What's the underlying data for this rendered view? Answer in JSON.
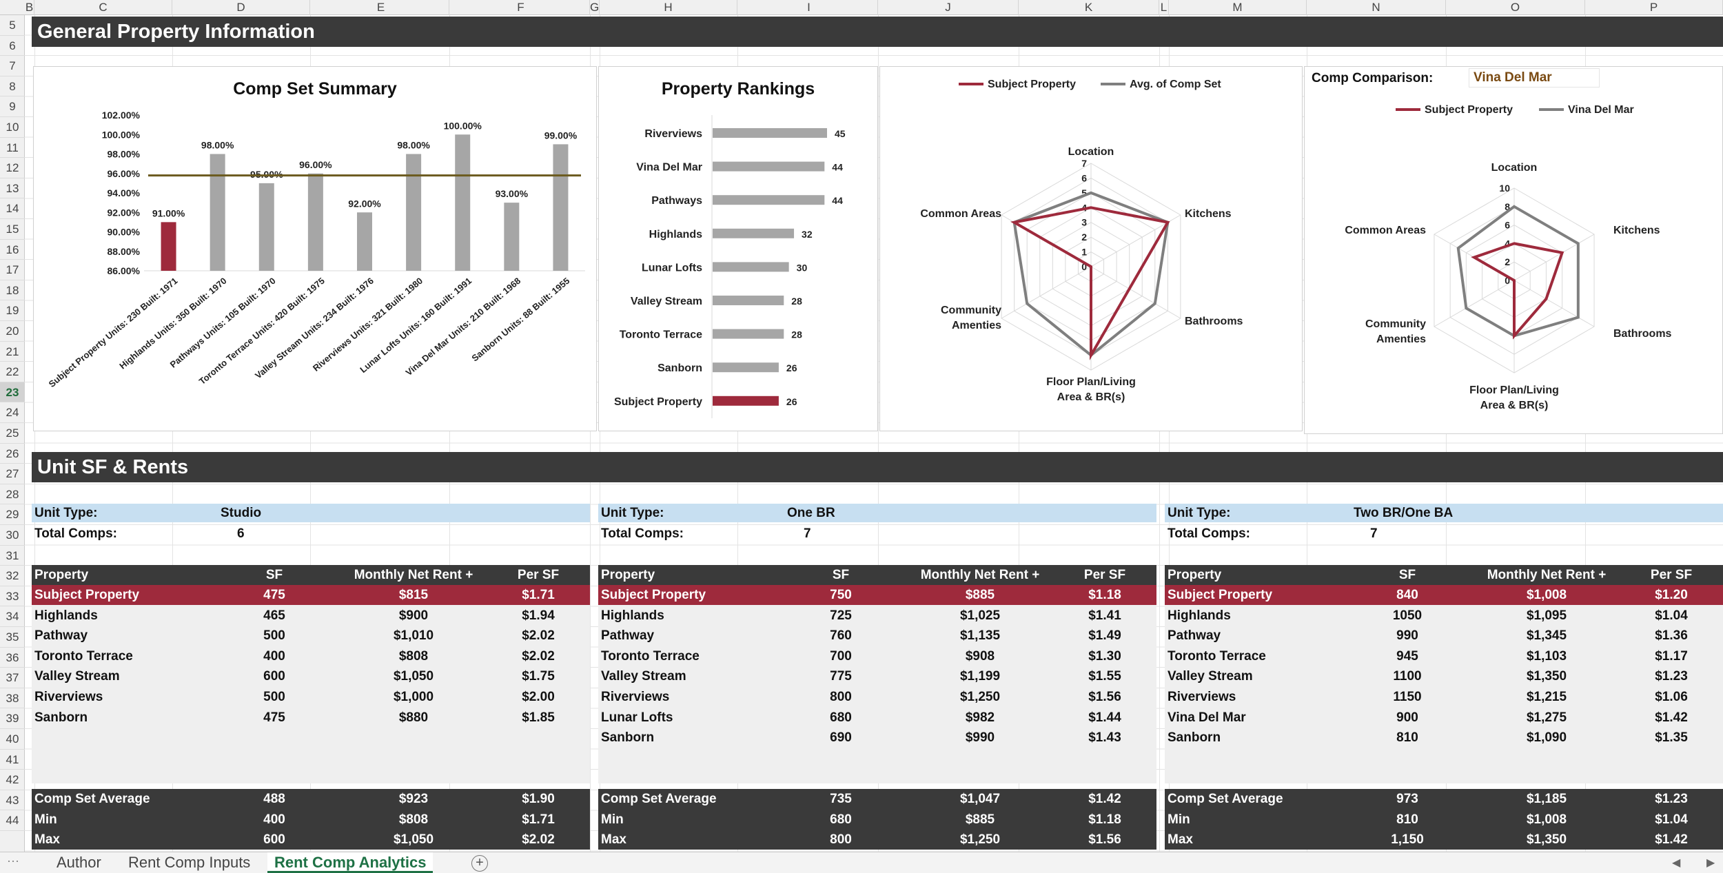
{
  "columns": [
    "B",
    "C",
    "D",
    "E",
    "F",
    "G",
    "H",
    "I",
    "J",
    "K",
    "L",
    "M",
    "N",
    "O",
    "P"
  ],
  "rows": [
    "5",
    "6",
    "7",
    "8",
    "9",
    "10",
    "11",
    "12",
    "13",
    "14",
    "15",
    "16",
    "17",
    "18",
    "19",
    "20",
    "21",
    "22",
    "23",
    "24",
    "25",
    "26",
    "27",
    "28",
    "29",
    "30",
    "31",
    "32",
    "33",
    "34",
    "35",
    "36",
    "37",
    "38",
    "39",
    "40",
    "41",
    "42",
    "43",
    "44"
  ],
  "selected_row": "23",
  "sections": {
    "general": "General Property Information",
    "unit": "Unit SF & Rents"
  },
  "comp_summary": {
    "title": "Comp Set Summary",
    "chart_data": {
      "type": "bar",
      "categories": [
        "Subject Property Units: 230 Built: 1971",
        "Highlands Units: 350 Built: 1970",
        "Pathways Units: 105 Built: 1970",
        "Toronto Terrace Units: 420 Built: 1975",
        "Valley Stream Units: 234 Built: 1976",
        "Riverviews Units: 321 Built: 1980",
        "Lunar Lofts Units: 160 Built: 1991",
        "Vina Del Mar Units: 210 Built: 1968",
        "Sanborn Units: 88 Built: 1955"
      ],
      "values": [
        91,
        98,
        95,
        96,
        92,
        98,
        100,
        93,
        99
      ],
      "data_labels": [
        "91.00%",
        "98.00%",
        "95.00%",
        "96.00%",
        "92.00%",
        "98.00%",
        "100.00%",
        "93.00%",
        "99.00%"
      ],
      "average_line": 95.8,
      "ylim": [
        86,
        102
      ],
      "yticks": [
        "86.00%",
        "88.00%",
        "90.00%",
        "92.00%",
        "94.00%",
        "96.00%",
        "98.00%",
        "100.00%",
        "102.00%"
      ],
      "highlight_color": "#9e2a3c",
      "bar_color": "#a6a6a6",
      "line_color": "#6b5a1e"
    }
  },
  "rankings": {
    "title": "Property Rankings",
    "chart_data": {
      "type": "bar",
      "orientation": "horizontal",
      "categories": [
        "Riverviews",
        "Vina Del Mar",
        "Pathways",
        "Highlands",
        "Lunar Lofts",
        "Valley Stream",
        "Toronto Terrace",
        "Sanborn",
        "Subject Property"
      ],
      "values": [
        45,
        44,
        44,
        32,
        30,
        28,
        28,
        26,
        26
      ],
      "xlim": [
        0,
        45
      ]
    }
  },
  "radar1": {
    "legend": [
      "Subject Property",
      "Avg. of Comp Set"
    ],
    "chart_data": {
      "type": "radar",
      "axes": [
        "Location",
        "Kitchens",
        "Bathrooms",
        "Floor Plan/Living Area & BR(s)",
        "Community Amenties",
        "Common Areas"
      ],
      "rlim": [
        0,
        7
      ],
      "ticks": [
        "0",
        "1",
        "2",
        "3",
        "4",
        "5",
        "6",
        "7"
      ],
      "series": [
        {
          "name": "Subject Property",
          "values": [
            4,
            6,
            3,
            6,
            0,
            6
          ],
          "color": "#9e2a3c"
        },
        {
          "name": "Avg. of Comp Set",
          "values": [
            5,
            6,
            5,
            6,
            5,
            6
          ],
          "color": "#7f7f7f"
        }
      ]
    }
  },
  "radar2": {
    "comp_label": "Comp Comparison:",
    "comp_value": "Vina Del Mar",
    "legend": [
      "Subject Property",
      "Vina Del Mar"
    ],
    "chart_data": {
      "type": "radar",
      "axes": [
        "Location",
        "Kitchens",
        "Bathrooms",
        "Floor Plan/Living Area & BR(s)",
        "Community Amenties",
        "Common Areas"
      ],
      "rlim": [
        0,
        10
      ],
      "ticks": [
        "0",
        "2",
        "4",
        "6",
        "8",
        "10"
      ],
      "series": [
        {
          "name": "Subject Property",
          "values": [
            4,
            6,
            4,
            6,
            0,
            5
          ],
          "color": "#9e2a3c"
        },
        {
          "name": "Vina Del Mar",
          "values": [
            8,
            8,
            8,
            6,
            6,
            7
          ],
          "color": "#7f7f7f"
        }
      ]
    }
  },
  "tables": [
    {
      "unit_type_label": "Unit Type:",
      "unit_type": "Studio",
      "total_label": "Total Comps:",
      "total": "6",
      "headers": [
        "Property",
        "SF",
        "Monthly Net Rent +",
        "Per SF"
      ],
      "subject": [
        "Subject Property",
        "475",
        "$815",
        "$1.71"
      ],
      "rows": [
        [
          "Highlands",
          "465",
          "$900",
          "$1.94"
        ],
        [
          "Pathway",
          "500",
          "$1,010",
          "$2.02"
        ],
        [
          "Toronto Terrace",
          "400",
          "$808",
          "$2.02"
        ],
        [
          "Valley Stream",
          "600",
          "$1,050",
          "$1.75"
        ],
        [
          "Riverviews",
          "500",
          "$1,000",
          "$2.00"
        ],
        [
          "Sanborn",
          "475",
          "$880",
          "$1.85"
        ]
      ],
      "summary": [
        [
          "Comp Set Average",
          "488",
          "$923",
          "$1.90"
        ],
        [
          "Min",
          "400",
          "$808",
          "$1.71"
        ],
        [
          "Max",
          "600",
          "$1,050",
          "$2.02"
        ]
      ]
    },
    {
      "unit_type_label": "Unit Type:",
      "unit_type": "One BR",
      "total_label": "Total Comps:",
      "total": "7",
      "headers": [
        "Property",
        "SF",
        "Monthly Net Rent +",
        "Per SF"
      ],
      "subject": [
        "Subject Property",
        "750",
        "$885",
        "$1.18"
      ],
      "rows": [
        [
          "Highlands",
          "725",
          "$1,025",
          "$1.41"
        ],
        [
          "Pathway",
          "760",
          "$1,135",
          "$1.49"
        ],
        [
          "Toronto Terrace",
          "700",
          "$908",
          "$1.30"
        ],
        [
          "Valley Stream",
          "775",
          "$1,199",
          "$1.55"
        ],
        [
          "Riverviews",
          "800",
          "$1,250",
          "$1.56"
        ],
        [
          "Lunar Lofts",
          "680",
          "$982",
          "$1.44"
        ],
        [
          "Sanborn",
          "690",
          "$990",
          "$1.43"
        ]
      ],
      "summary": [
        [
          "Comp Set Average",
          "735",
          "$1,047",
          "$1.42"
        ],
        [
          "Min",
          "680",
          "$885",
          "$1.18"
        ],
        [
          "Max",
          "800",
          "$1,250",
          "$1.56"
        ]
      ]
    },
    {
      "unit_type_label": "Unit Type:",
      "unit_type": "Two BR/One BA",
      "total_label": "Total Comps:",
      "total": "7",
      "headers": [
        "Property",
        "SF",
        "Monthly Net Rent +",
        "Per SF"
      ],
      "subject": [
        "Subject Property",
        "840",
        "$1,008",
        "$1.20"
      ],
      "rows": [
        [
          "Highlands",
          "1050",
          "$1,095",
          "$1.04"
        ],
        [
          "Pathway",
          "990",
          "$1,345",
          "$1.36"
        ],
        [
          "Toronto Terrace",
          "945",
          "$1,103",
          "$1.17"
        ],
        [
          "Valley Stream",
          "1100",
          "$1,350",
          "$1.23"
        ],
        [
          "Riverviews",
          "1150",
          "$1,215",
          "$1.06"
        ],
        [
          "Vina Del Mar",
          "900",
          "$1,275",
          "$1.42"
        ],
        [
          "Sanborn",
          "810",
          "$1,090",
          "$1.35"
        ]
      ],
      "summary": [
        [
          "Comp Set Average",
          "973",
          "$1,185",
          "$1.23"
        ],
        [
          "Min",
          "810",
          "$1,008",
          "$1.04"
        ],
        [
          "Max",
          "1,150",
          "$1,350",
          "$1.42"
        ]
      ]
    }
  ],
  "sheet_tabs": [
    "Author",
    "Rent Comp Inputs",
    "Rent Comp Analytics"
  ],
  "active_tab": "Rent Comp Analytics",
  "colors": {
    "accent": "#9e2a3c",
    "dark": "#3a3a3a",
    "unit_bar": "#c7dff1",
    "tab_green": "#1e7145",
    "comp_value": "#7a4a12"
  }
}
